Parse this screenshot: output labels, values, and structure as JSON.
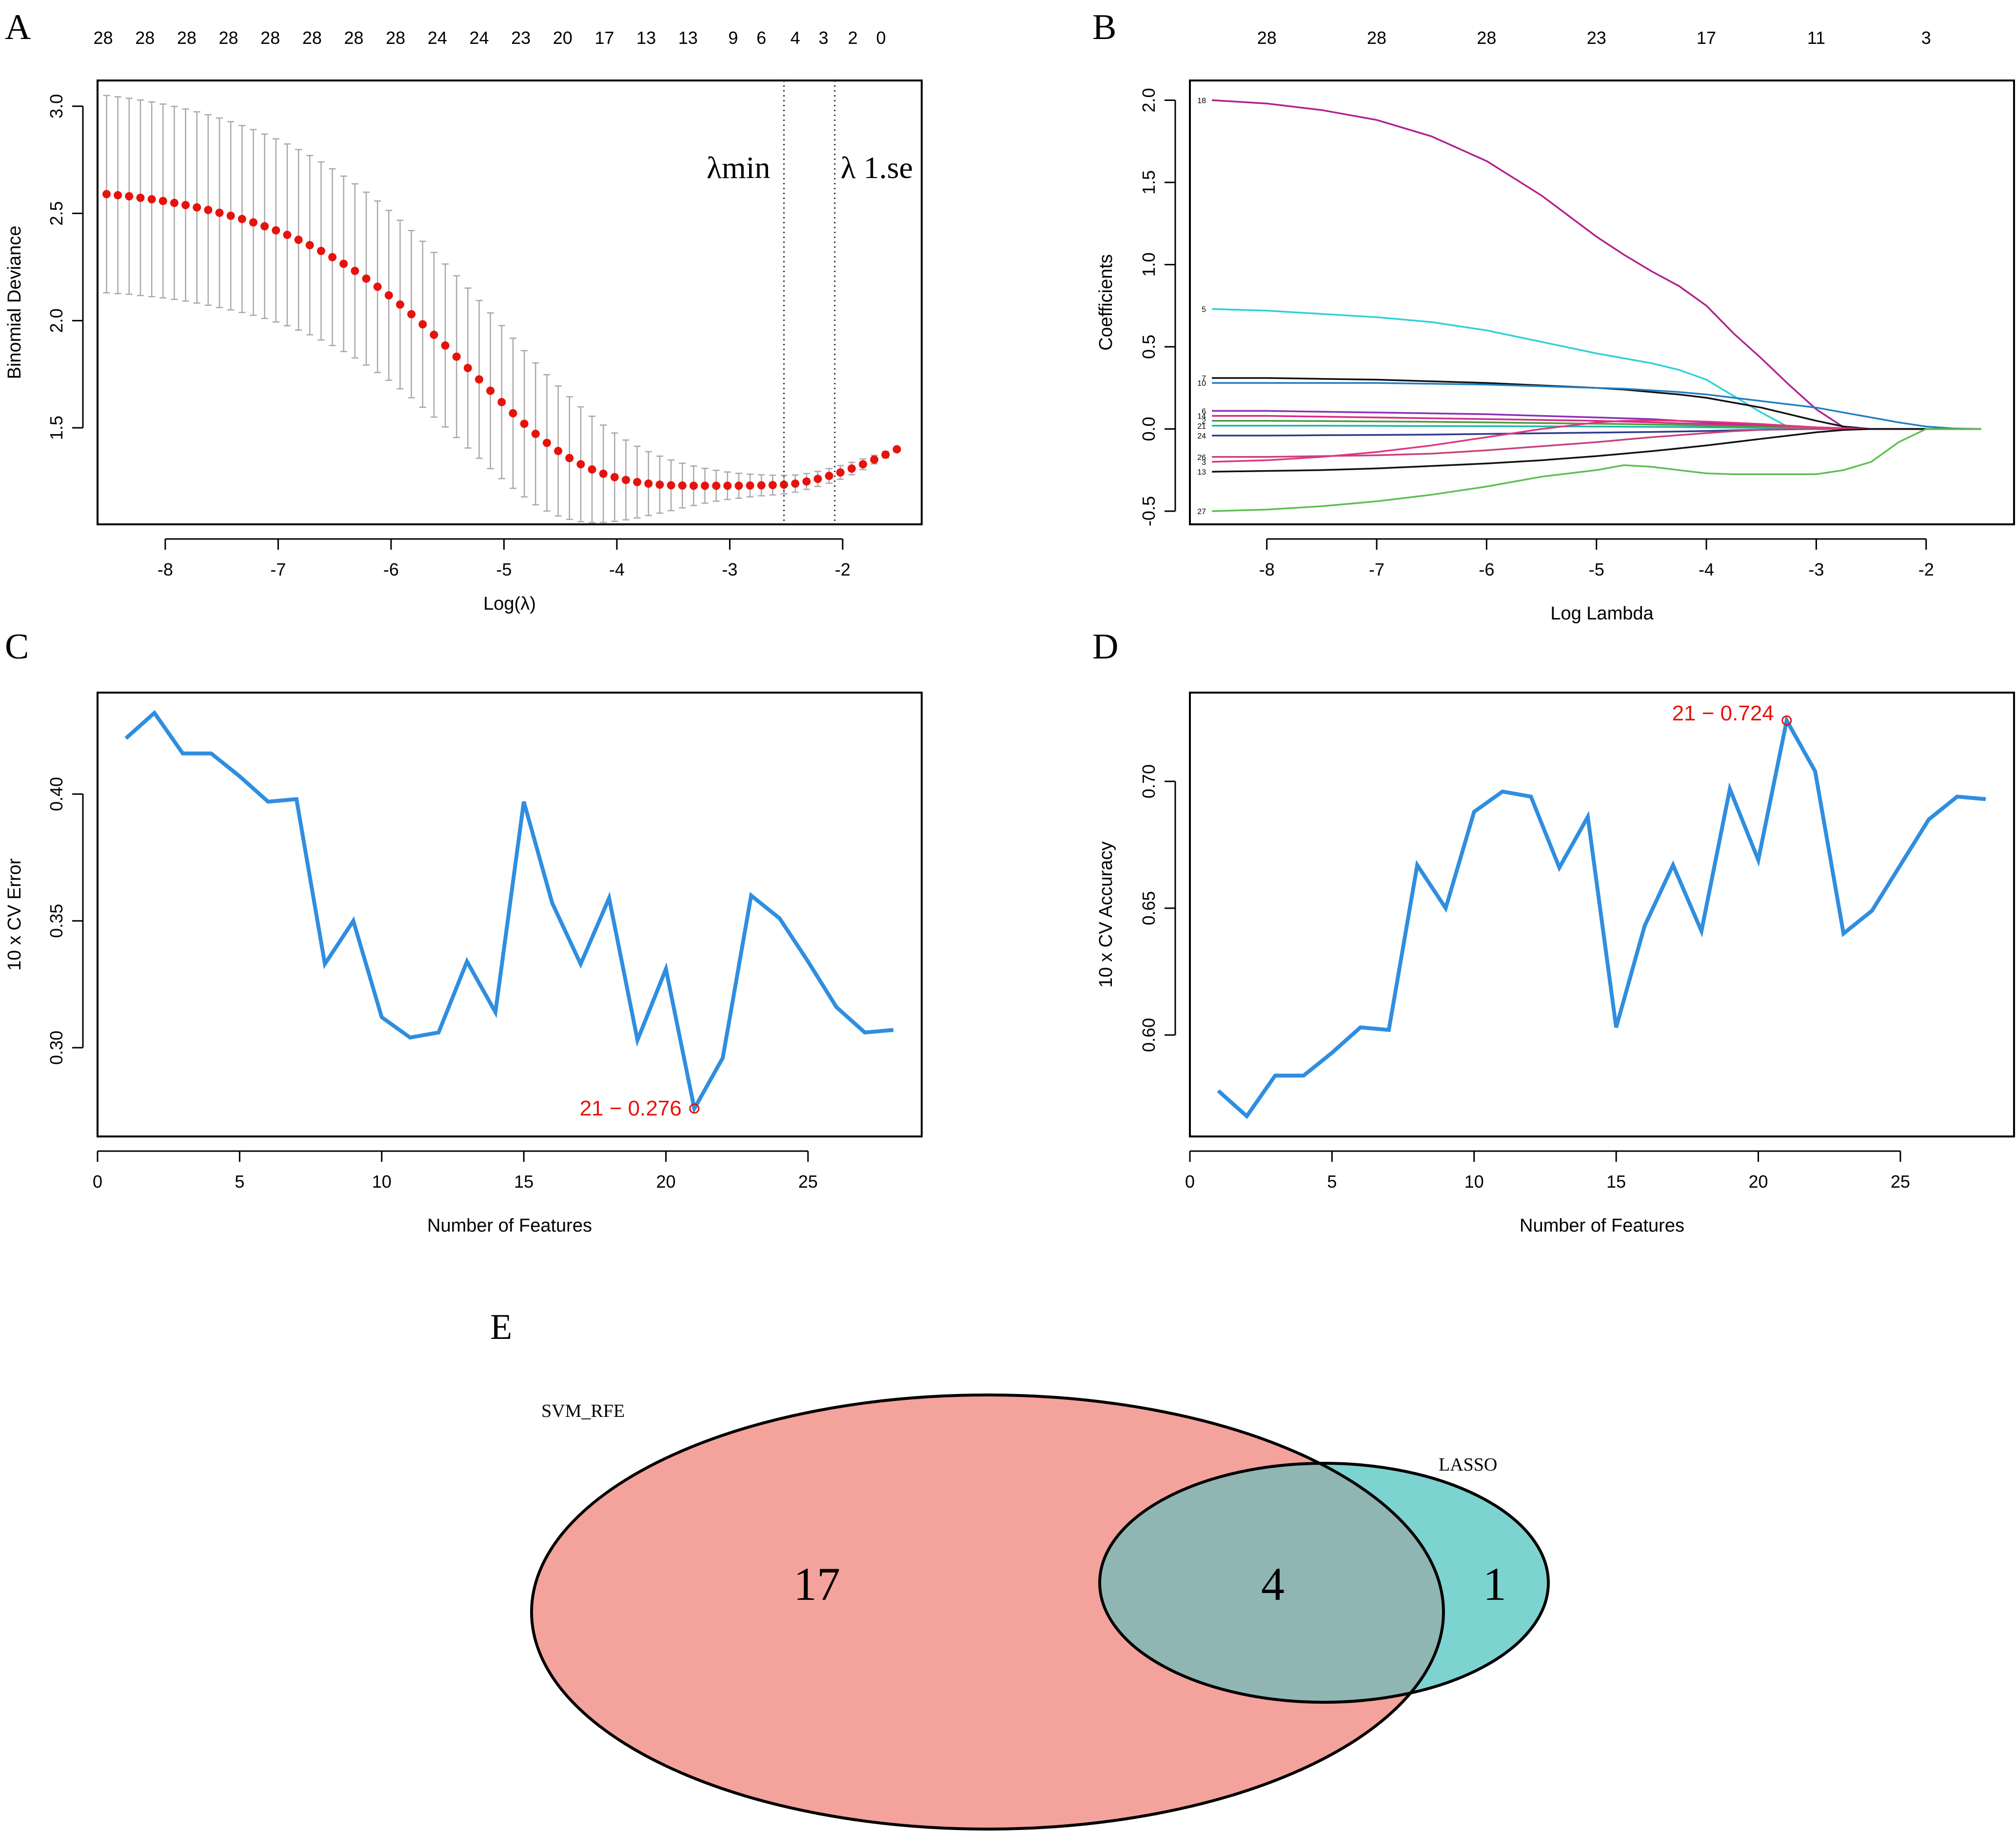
{
  "panel_letters": {
    "a": "A",
    "b": "B",
    "c": "C",
    "d": "D",
    "e": "E"
  },
  "chart_data": [
    {
      "id": "A",
      "type": "scatter",
      "title": "",
      "xlabel": "Log(λ)",
      "ylabel": "Binomial Deviance",
      "xlim": [
        -8.6,
        -1.3
      ],
      "ylim": [
        1.05,
        3.12
      ],
      "xticks": [
        -8,
        -7,
        -6,
        -5,
        -4,
        -3,
        -2
      ],
      "yticks": [
        1.5,
        2.0,
        2.5,
        3.0
      ],
      "ytick_labels": [
        "1.5",
        "2.0",
        "2.5",
        "3.0"
      ],
      "top_axis": {
        "positions": [
          -8.55,
          -8.18,
          -7.81,
          -7.44,
          -7.07,
          -6.7,
          -6.33,
          -5.96,
          -5.59,
          -5.22,
          -4.85,
          -4.48,
          -4.11,
          -3.74,
          -3.37,
          -2.97,
          -2.72,
          -2.42,
          -2.17,
          -1.91,
          -1.66
        ],
        "labels": [
          "28",
          "28",
          "28",
          "28",
          "28",
          "28",
          "28",
          "28",
          "24",
          "24",
          "23",
          "20",
          "17",
          "13",
          "13",
          "9",
          "6",
          "4",
          "3",
          "2",
          "0"
        ]
      },
      "series": [
        {
          "name": "Binomial Deviance (mean)",
          "color": "#e8120c",
          "x": [
            -8.52,
            -8.42,
            -8.32,
            -8.22,
            -8.12,
            -8.02,
            -7.92,
            -7.82,
            -7.72,
            -7.62,
            -7.52,
            -7.42,
            -7.32,
            -7.22,
            -7.12,
            -7.02,
            -6.92,
            -6.82,
            -6.72,
            -6.62,
            -6.52,
            -6.42,
            -6.32,
            -6.22,
            -6.12,
            -6.02,
            -5.92,
            -5.82,
            -5.72,
            -5.62,
            -5.52,
            -5.42,
            -5.32,
            -5.22,
            -5.12,
            -5.02,
            -4.92,
            -4.82,
            -4.72,
            -4.62,
            -4.52,
            -4.42,
            -4.32,
            -4.22,
            -4.12,
            -4.02,
            -3.92,
            -3.82,
            -3.72,
            -3.62,
            -3.52,
            -3.42,
            -3.32,
            -3.22,
            -3.12,
            -3.02,
            -2.92,
            -2.82,
            -2.72,
            -2.62,
            -2.52,
            -2.42,
            -2.32,
            -2.22,
            -2.12,
            -2.02,
            -1.92,
            -1.82,
            -1.72,
            -1.62,
            -1.52
          ],
          "y": [
            2.59,
            2.585,
            2.58,
            2.573,
            2.566,
            2.558,
            2.549,
            2.539,
            2.528,
            2.516,
            2.503,
            2.489,
            2.474,
            2.458,
            2.44,
            2.421,
            2.4,
            2.377,
            2.352,
            2.325,
            2.296,
            2.265,
            2.232,
            2.196,
            2.158,
            2.118,
            2.075,
            2.03,
            1.983,
            1.934,
            1.884,
            1.832,
            1.779,
            1.726,
            1.673,
            1.62,
            1.568,
            1.519,
            1.472,
            1.43,
            1.392,
            1.359,
            1.33,
            1.306,
            1.286,
            1.27,
            1.257,
            1.247,
            1.24,
            1.235,
            1.232,
            1.231,
            1.23,
            1.23,
            1.23,
            1.23,
            1.23,
            1.231,
            1.232,
            1.233,
            1.235,
            1.24,
            1.25,
            1.262,
            1.276,
            1.292,
            1.31,
            1.33,
            1.352,
            1.375,
            1.4
          ],
          "y_upper": [
            3.05,
            3.044,
            3.037,
            3.029,
            3.02,
            3.01,
            2.999,
            2.987,
            2.974,
            2.96,
            2.945,
            2.928,
            2.91,
            2.891,
            2.87,
            2.848,
            2.824,
            2.798,
            2.77,
            2.74,
            2.708,
            2.674,
            2.638,
            2.599,
            2.558,
            2.514,
            2.468,
            2.42,
            2.37,
            2.318,
            2.264,
            2.209,
            2.152,
            2.094,
            2.036,
            1.977,
            1.918,
            1.86,
            1.803,
            1.748,
            1.695,
            1.645,
            1.598,
            1.554,
            1.513,
            1.476,
            1.443,
            1.414,
            1.389,
            1.368,
            1.35,
            1.335,
            1.322,
            1.311,
            1.302,
            1.294,
            1.288,
            1.284,
            1.281,
            1.279,
            1.278,
            1.28,
            1.287,
            1.297,
            1.31,
            1.324,
            1.339,
            1.355,
            1.372,
            1.39,
            1.409
          ],
          "y_lower": [
            2.13,
            2.126,
            2.123,
            2.117,
            2.112,
            2.106,
            2.099,
            2.091,
            2.082,
            2.072,
            2.061,
            2.05,
            2.038,
            2.025,
            2.01,
            1.994,
            1.976,
            1.956,
            1.934,
            1.91,
            1.884,
            1.856,
            1.826,
            1.793,
            1.758,
            1.722,
            1.682,
            1.64,
            1.596,
            1.55,
            1.504,
            1.455,
            1.406,
            1.358,
            1.31,
            1.263,
            1.218,
            1.178,
            1.141,
            1.112,
            1.089,
            1.073,
            1.062,
            1.058,
            1.059,
            1.064,
            1.071,
            1.08,
            1.091,
            1.102,
            1.114,
            1.127,
            1.138,
            1.149,
            1.158,
            1.166,
            1.172,
            1.178,
            1.183,
            1.187,
            1.192,
            1.2,
            1.213,
            1.227,
            1.242,
            1.26,
            1.281,
            1.305,
            1.332,
            1.36,
            1.391
          ]
        }
      ],
      "vlines": [
        {
          "x": -2.52,
          "label": "λmin"
        },
        {
          "x": -2.07,
          "label": "λ 1.se"
        }
      ]
    },
    {
      "id": "B",
      "type": "line",
      "title": "",
      "xlabel": "Log Lambda",
      "ylabel": "Coefficients",
      "xlim": [
        -8.7,
        -1.2
      ],
      "ylim": [
        -0.58,
        2.12
      ],
      "xticks": [
        -8,
        -7,
        -6,
        -5,
        -4,
        -3,
        -2
      ],
      "yticks": [
        -0.5,
        0.0,
        0.5,
        1.0,
        1.5,
        2.0
      ],
      "ytick_labels": [
        "-0.5",
        "0.0",
        "0.5",
        "1.0",
        "1.5",
        "2.0"
      ],
      "top_axis": {
        "positions": [
          -8,
          -7,
          -6,
          -5,
          -4,
          -3,
          -2
        ],
        "labels": [
          "28",
          "28",
          "28",
          "23",
          "17",
          "11",
          "3"
        ]
      },
      "x": [
        -8.5,
        -8,
        -7.5,
        -7,
        -6.5,
        -6,
        -5.5,
        -5,
        -4.75,
        -4.5,
        -4.25,
        -4,
        -3.75,
        -3.5,
        -3.25,
        -3,
        -2.75,
        -2.5,
        -2.25,
        -2,
        -1.75,
        -1.5
      ],
      "series": [
        {
          "name": "18",
          "color": "#b0208f",
          "values": [
            2.0,
            1.98,
            1.94,
            1.88,
            1.78,
            1.63,
            1.42,
            1.17,
            1.06,
            0.96,
            0.87,
            0.75,
            0.58,
            0.43,
            0.27,
            0.12,
            0.01,
            0,
            0,
            0,
            0,
            0
          ]
        },
        {
          "name": "5",
          "color": "#2ed1d6",
          "values": [
            0.73,
            0.72,
            0.7,
            0.68,
            0.65,
            0.6,
            0.53,
            0.46,
            0.43,
            0.4,
            0.36,
            0.3,
            0.2,
            0.1,
            0.01,
            0,
            0,
            0,
            0,
            0,
            0,
            0
          ]
        },
        {
          "name": "7",
          "color": "#111111",
          "values": [
            0.31,
            0.31,
            0.305,
            0.3,
            0.29,
            0.28,
            0.265,
            0.25,
            0.24,
            0.225,
            0.21,
            0.19,
            0.16,
            0.13,
            0.09,
            0.05,
            0.015,
            0,
            0,
            0,
            0,
            0
          ]
        },
        {
          "name": "10",
          "color": "#1f7fc4",
          "values": [
            0.28,
            0.28,
            0.28,
            0.28,
            0.275,
            0.27,
            0.26,
            0.25,
            0.245,
            0.235,
            0.225,
            0.21,
            0.19,
            0.17,
            0.15,
            0.13,
            0.1,
            0.07,
            0.04,
            0.015,
            0.003,
            0
          ]
        },
        {
          "name": "6",
          "color": "#8b2fb5",
          "values": [
            0.11,
            0.11,
            0.105,
            0.1,
            0.095,
            0.09,
            0.08,
            0.07,
            0.065,
            0.06,
            0.05,
            0.04,
            0.03,
            0.02,
            0.01,
            0,
            0,
            0,
            0,
            0,
            0,
            0
          ]
        },
        {
          "name": "14",
          "color": "#d52a86",
          "values": [
            0.08,
            0.08,
            0.075,
            0.07,
            0.065,
            0.06,
            0.055,
            0.05,
            0.045,
            0.04,
            0.035,
            0.03,
            0.025,
            0.02,
            0.015,
            0.01,
            0.005,
            0,
            0,
            0,
            0,
            0
          ]
        },
        {
          "name": "2",
          "color": "#4d9b3a",
          "values": [
            0.05,
            0.05,
            0.048,
            0.046,
            0.044,
            0.04,
            0.036,
            0.032,
            0.03,
            0.027,
            0.024,
            0.02,
            0.016,
            0.012,
            0.008,
            0.004,
            0,
            0,
            0,
            0,
            0,
            0
          ]
        },
        {
          "name": "21",
          "color": "#1fb7a6",
          "values": [
            0.02,
            0.02,
            0.02,
            0.019,
            0.018,
            0.017,
            0.016,
            0.015,
            0.014,
            0.013,
            0.012,
            0.01,
            0.008,
            0.006,
            0.004,
            0.002,
            0,
            0,
            0,
            0,
            0,
            0
          ]
        },
        {
          "name": "24",
          "color": "#2d3a8c",
          "values": [
            -0.04,
            -0.04,
            -0.038,
            -0.036,
            -0.034,
            -0.03,
            -0.026,
            -0.022,
            -0.02,
            -0.018,
            -0.015,
            -0.012,
            -0.008,
            -0.005,
            -0.002,
            0,
            0,
            0,
            0,
            0,
            0,
            0
          ]
        },
        {
          "name": "26",
          "color": "#c8407a",
          "values": [
            -0.17,
            -0.17,
            -0.165,
            -0.16,
            -0.15,
            -0.13,
            -0.105,
            -0.08,
            -0.065,
            -0.05,
            -0.038,
            -0.025,
            -0.013,
            -0.005,
            0,
            0,
            0,
            0,
            0,
            0,
            0,
            0
          ]
        },
        {
          "name": "3",
          "color": "#e0367e",
          "values": [
            -0.2,
            -0.19,
            -0.17,
            -0.14,
            -0.1,
            -0.05,
            0.0,
            0.04,
            0.05,
            0.052,
            0.05,
            0.045,
            0.038,
            0.03,
            0.02,
            0.01,
            0.003,
            0,
            0,
            0,
            0,
            0
          ]
        },
        {
          "name": "13",
          "color": "#111111",
          "values": [
            -0.26,
            -0.255,
            -0.25,
            -0.24,
            -0.225,
            -0.21,
            -0.19,
            -0.165,
            -0.15,
            -0.135,
            -0.118,
            -0.1,
            -0.08,
            -0.06,
            -0.04,
            -0.02,
            -0.006,
            0,
            0,
            0,
            0,
            0
          ]
        },
        {
          "name": "27",
          "color": "#5cbf4f",
          "values": [
            -0.5,
            -0.49,
            -0.47,
            -0.44,
            -0.4,
            -0.35,
            -0.29,
            -0.25,
            -0.22,
            -0.23,
            -0.25,
            -0.27,
            -0.275,
            -0.275,
            -0.275,
            -0.275,
            -0.25,
            -0.2,
            -0.08,
            0,
            0,
            0
          ]
        }
      ]
    },
    {
      "id": "C",
      "type": "line",
      "title": "",
      "xlabel": "Number of Features",
      "ylabel": "10 x CV Error",
      "xlim": [
        0,
        29
      ],
      "ylim": [
        0.265,
        0.44
      ],
      "xticks": [
        0,
        5,
        10,
        15,
        20,
        25
      ],
      "yticks": [
        0.3,
        0.35,
        0.4
      ],
      "ytick_labels": [
        "0.30",
        "0.35",
        "0.40"
      ],
      "color": "#2f8ee0",
      "x": [
        1,
        2,
        3,
        4,
        5,
        6,
        7,
        8,
        9,
        10,
        11,
        12,
        13,
        14,
        15,
        16,
        17,
        18,
        19,
        20,
        21,
        22,
        23,
        24,
        25,
        26,
        27,
        28
      ],
      "values": [
        0.422,
        0.432,
        0.416,
        0.416,
        0.407,
        0.397,
        0.398,
        0.333,
        0.35,
        0.312,
        0.304,
        0.306,
        0.334,
        0.314,
        0.397,
        0.357,
        0.333,
        0.359,
        0.303,
        0.331,
        0.276,
        0.296,
        0.36,
        0.351,
        0.334,
        0.316,
        0.306,
        0.307
      ],
      "highlight": {
        "x": 21,
        "y": 0.276,
        "label": "21 − 0.276"
      }
    },
    {
      "id": "D",
      "type": "line",
      "title": "",
      "xlabel": "Number of Features",
      "ylabel": "10 x CV Accuracy",
      "xlim": [
        0,
        29
      ],
      "ylim": [
        0.56,
        0.735
      ],
      "xticks": [
        0,
        5,
        10,
        15,
        20,
        25
      ],
      "yticks": [
        0.6,
        0.65,
        0.7
      ],
      "ytick_labels": [
        "0.60",
        "0.65",
        "0.70"
      ],
      "color": "#2f8ee0",
      "x": [
        1,
        2,
        3,
        4,
        5,
        6,
        7,
        8,
        9,
        10,
        11,
        12,
        13,
        14,
        15,
        16,
        17,
        18,
        19,
        20,
        21,
        22,
        23,
        24,
        25,
        26,
        27,
        28
      ],
      "values": [
        0.578,
        0.568,
        0.584,
        0.584,
        0.593,
        0.603,
        0.602,
        0.667,
        0.65,
        0.688,
        0.696,
        0.694,
        0.666,
        0.686,
        0.603,
        0.643,
        0.667,
        0.641,
        0.697,
        0.669,
        0.724,
        0.704,
        0.64,
        0.649,
        0.667,
        0.685,
        0.694,
        0.693
      ],
      "highlight": {
        "x": 21,
        "y": 0.724,
        "label": "21 − 0.724"
      }
    },
    {
      "id": "E",
      "type": "venn",
      "sets": [
        {
          "name": "SVM_RFE",
          "color": "#f4a39c"
        },
        {
          "name": "LASSO",
          "color": "#7dd3d0"
        }
      ],
      "overlap_color": "#8fb6b2",
      "counts": {
        "svm_only": "17",
        "both": "4",
        "lasso_only": "1"
      }
    }
  ]
}
